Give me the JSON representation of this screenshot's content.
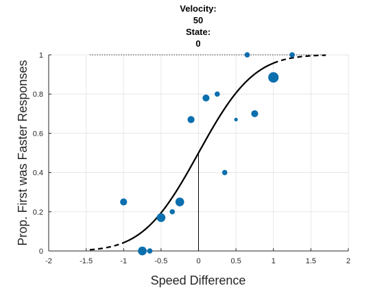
{
  "chart_data": {
    "type": "scatter",
    "title_lines": [
      "Velocity:",
      "50",
      "State:",
      "0"
    ],
    "xlabel": "Speed Difference",
    "ylabel": "Prop. First was Faster Responses",
    "xlim": [
      -2,
      2
    ],
    "ylim": [
      0,
      1
    ],
    "xticks": [
      -2,
      -1.5,
      -1,
      -0.5,
      0,
      0.5,
      1,
      1.5,
      2
    ],
    "xtick_labels": [
      "-2",
      "-1.5",
      "-1",
      "-0.5",
      "0",
      "0.5",
      "1",
      "1.5",
      "2"
    ],
    "yticks": [
      0,
      0.2,
      0.4,
      0.6,
      0.8,
      1
    ],
    "ytick_labels": [
      "0",
      "0.2",
      "0.4",
      "0.6",
      "0.8",
      "1"
    ],
    "grid": true,
    "colors": {
      "points": "#0B6FAE",
      "curve": "#000000",
      "upper_dotted": "#000000"
    },
    "points": [
      {
        "x": -1.0,
        "y": 0.25,
        "weight": 2
      },
      {
        "x": -0.75,
        "y": 0.0,
        "weight": 3
      },
      {
        "x": -0.65,
        "y": 0.0,
        "weight": 1
      },
      {
        "x": -0.5,
        "y": 0.17,
        "weight": 3
      },
      {
        "x": -0.35,
        "y": 0.2,
        "weight": 1
      },
      {
        "x": -0.25,
        "y": 0.25,
        "weight": 3
      },
      {
        "x": -0.1,
        "y": 0.67,
        "weight": 2
      },
      {
        "x": 0.1,
        "y": 0.78,
        "weight": 2
      },
      {
        "x": 0.25,
        "y": 0.8,
        "weight": 1
      },
      {
        "x": 0.35,
        "y": 0.4,
        "weight": 1
      },
      {
        "x": 0.5,
        "y": 0.67,
        "weight": 0
      },
      {
        "x": 0.65,
        "y": 1.0,
        "weight": 1
      },
      {
        "x": 0.75,
        "y": 0.7,
        "weight": 2
      },
      {
        "x": 1.0,
        "y": 0.885,
        "weight": 4
      },
      {
        "x": 1.25,
        "y": 1.0,
        "weight": 1
      }
    ],
    "fit_curve": {
      "model": "cumulative-normal",
      "mean": 0.0,
      "sd": 0.58,
      "solid_range": [
        -1,
        1
      ],
      "dashed_range": [
        -1.45,
        1.7
      ]
    },
    "pse_line": {
      "x": 0.0,
      "y_from": 0.0,
      "y_to": 0.5
    },
    "upper_reference": {
      "y": 1.0,
      "x_from": -1.45,
      "x_to": 1.7,
      "style": "dotted"
    }
  }
}
